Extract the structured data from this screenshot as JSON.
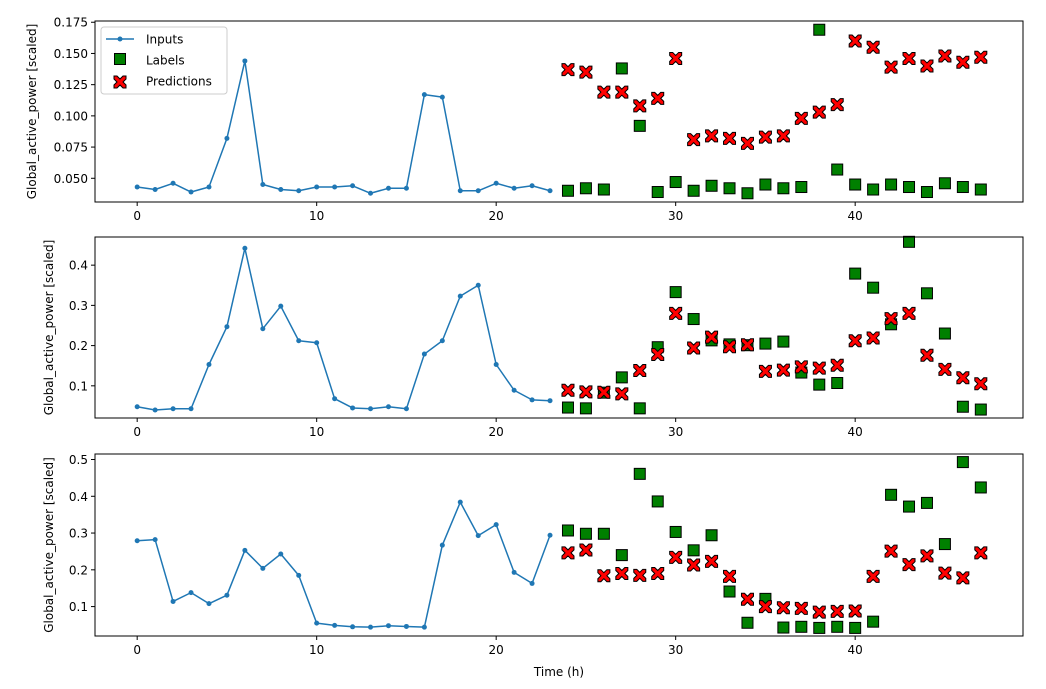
{
  "chart_data": {
    "type": "line",
    "xlabel": "Time (h)",
    "ylabel": "Global_active_power [scaled]",
    "xlim": [
      -2.35,
      49.35
    ],
    "xticks": [
      0,
      10,
      20,
      30,
      40
    ],
    "legend": {
      "placement": "top-left",
      "entries": [
        "Inputs",
        "Labels",
        "Predictions"
      ]
    },
    "colors": {
      "inputs": "#1f77b4",
      "labels": "#008000",
      "predictions": "#ff0000",
      "edge": "#000000"
    },
    "panels": [
      {
        "ylim": [
          0.031,
          0.176
        ],
        "yticks": [
          0.05,
          0.075,
          0.1,
          0.125,
          0.15,
          0.175
        ],
        "ytick_labels": [
          "0.050",
          "0.075",
          "0.100",
          "0.125",
          "0.150",
          "0.175"
        ],
        "inputs": {
          "x": [
            0,
            1,
            2,
            3,
            4,
            5,
            6,
            7,
            8,
            9,
            10,
            11,
            12,
            13,
            14,
            15,
            16,
            17,
            18,
            19,
            20,
            21,
            22,
            23
          ],
          "y": [
            0.043,
            0.041,
            0.046,
            0.039,
            0.043,
            0.082,
            0.144,
            0.045,
            0.041,
            0.04,
            0.043,
            0.043,
            0.044,
            0.038,
            0.042,
            0.042,
            0.117,
            0.115,
            0.04,
            0.04,
            0.046,
            0.042,
            0.044,
            0.04
          ]
        },
        "labels": {
          "x": [
            24,
            25,
            26,
            27,
            28,
            29,
            30,
            31,
            32,
            33,
            34,
            35,
            36,
            37,
            38,
            39,
            40,
            41,
            42,
            43,
            44,
            45,
            46,
            47
          ],
          "y": [
            0.04,
            0.042,
            0.041,
            0.138,
            0.092,
            0.039,
            0.047,
            0.04,
            0.044,
            0.042,
            0.038,
            0.045,
            0.042,
            0.043,
            0.169,
            0.057,
            0.045,
            0.041,
            0.045,
            0.043,
            0.039,
            0.046,
            0.043,
            0.041
          ]
        },
        "predictions": {
          "x": [
            24,
            25,
            26,
            27,
            28,
            29,
            30,
            31,
            32,
            33,
            34,
            35,
            36,
            37,
            38,
            39,
            40,
            41,
            42,
            43,
            44,
            45,
            46,
            47
          ],
          "y": [
            0.137,
            0.135,
            0.119,
            0.119,
            0.108,
            0.114,
            0.146,
            0.081,
            0.084,
            0.082,
            0.078,
            0.083,
            0.084,
            0.098,
            0.103,
            0.109,
            0.16,
            0.155,
            0.139,
            0.146,
            0.14,
            0.148,
            0.143,
            0.147
          ]
        }
      },
      {
        "ylim": [
          0.02,
          0.47
        ],
        "yticks": [
          0.1,
          0.2,
          0.3,
          0.4
        ],
        "ytick_labels": [
          "0.1",
          "0.2",
          "0.3",
          "0.4"
        ],
        "inputs": {
          "x": [
            0,
            1,
            2,
            3,
            4,
            5,
            6,
            7,
            8,
            9,
            10,
            11,
            12,
            13,
            14,
            15,
            16,
            17,
            18,
            19,
            20,
            21,
            22,
            23
          ],
          "y": [
            0.048,
            0.04,
            0.043,
            0.043,
            0.153,
            0.247,
            0.442,
            0.242,
            0.298,
            0.212,
            0.207,
            0.068,
            0.045,
            0.043,
            0.048,
            0.043,
            0.179,
            0.212,
            0.323,
            0.35,
            0.153,
            0.089,
            0.065,
            0.063
          ]
        },
        "labels": {
          "x": [
            24,
            25,
            26,
            27,
            28,
            29,
            30,
            31,
            32,
            33,
            34,
            35,
            36,
            37,
            38,
            39,
            40,
            41,
            42,
            43,
            44,
            45,
            46,
            47
          ],
          "y": [
            0.046,
            0.044,
            0.083,
            0.121,
            0.044,
            0.196,
            0.333,
            0.266,
            0.213,
            0.203,
            0.201,
            0.205,
            0.21,
            0.133,
            0.103,
            0.107,
            0.379,
            0.344,
            0.253,
            0.458,
            0.33,
            0.23,
            0.048,
            0.041
          ]
        },
        "predictions": {
          "x": [
            24,
            25,
            26,
            27,
            28,
            29,
            30,
            31,
            32,
            33,
            34,
            35,
            36,
            37,
            38,
            39,
            40,
            41,
            42,
            43,
            44,
            45,
            46,
            47
          ],
          "y": [
            0.089,
            0.085,
            0.084,
            0.08,
            0.138,
            0.178,
            0.28,
            0.194,
            0.221,
            0.197,
            0.202,
            0.136,
            0.139,
            0.147,
            0.144,
            0.151,
            0.212,
            0.219,
            0.267,
            0.28,
            0.176,
            0.141,
            0.12,
            0.105
          ]
        }
      },
      {
        "ylim": [
          0.02,
          0.515
        ],
        "yticks": [
          0.1,
          0.2,
          0.3,
          0.4,
          0.5
        ],
        "ytick_labels": [
          "0.1",
          "0.2",
          "0.3",
          "0.4",
          "0.5"
        ],
        "inputs": {
          "x": [
            0,
            1,
            2,
            3,
            4,
            5,
            6,
            7,
            8,
            9,
            10,
            11,
            12,
            13,
            14,
            15,
            16,
            17,
            18,
            19,
            20,
            21,
            22,
            23
          ],
          "y": [
            0.279,
            0.282,
            0.114,
            0.138,
            0.108,
            0.131,
            0.253,
            0.204,
            0.243,
            0.185,
            0.055,
            0.049,
            0.045,
            0.044,
            0.048,
            0.046,
            0.044,
            0.267,
            0.384,
            0.293,
            0.323,
            0.193,
            0.163,
            0.294
          ]
        },
        "labels": {
          "x": [
            24,
            25,
            26,
            27,
            28,
            29,
            30,
            31,
            32,
            33,
            34,
            35,
            36,
            37,
            38,
            39,
            40,
            41,
            42,
            43,
            44,
            45,
            46,
            47
          ],
          "y": [
            0.307,
            0.298,
            0.298,
            0.24,
            0.461,
            0.386,
            0.303,
            0.253,
            0.294,
            0.141,
            0.056,
            0.121,
            0.043,
            0.045,
            0.042,
            0.045,
            0.042,
            0.059,
            0.404,
            0.372,
            0.382,
            0.27,
            0.493,
            0.424
          ]
        },
        "predictions": {
          "x": [
            24,
            25,
            26,
            27,
            28,
            29,
            30,
            31,
            32,
            33,
            34,
            35,
            36,
            37,
            38,
            39,
            40,
            41,
            42,
            43,
            44,
            45,
            46,
            47
          ],
          "y": [
            0.246,
            0.254,
            0.184,
            0.19,
            0.185,
            0.19,
            0.234,
            0.213,
            0.223,
            0.182,
            0.12,
            0.1,
            0.097,
            0.095,
            0.085,
            0.087,
            0.088,
            0.182,
            0.251,
            0.214,
            0.238,
            0.191,
            0.178,
            0.246
          ]
        }
      }
    ]
  }
}
